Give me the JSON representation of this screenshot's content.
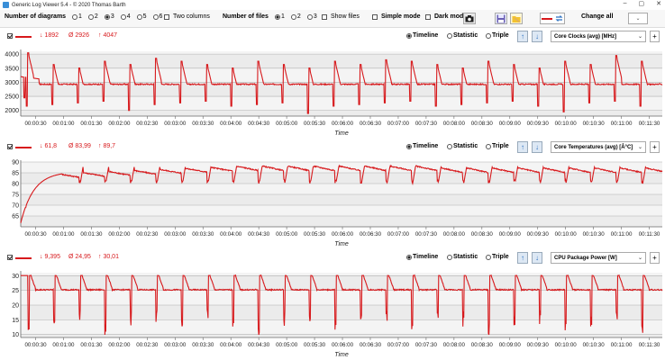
{
  "window": {
    "title": "Generic Log Viewer 5.4 - © 2020 Thomas Barth",
    "minimize": "–",
    "maximize": "▢",
    "close": "✕"
  },
  "toolbar": {
    "num_diagrams_label": "Number of diagrams",
    "diagram_options": [
      "1",
      "2",
      "3",
      "4",
      "5",
      "6"
    ],
    "diagram_selected": "3",
    "two_columns_label": "Two columns",
    "num_files_label": "Number of files",
    "file_options": [
      "1",
      "2",
      "3"
    ],
    "file_selected": "1",
    "show_files_label": "Show files",
    "simple_mode_label": "Simple mode",
    "dark_mode_label": "Dark mod",
    "change_all_label": "Change all",
    "accent_color": "#d7191c"
  },
  "panels": [
    {
      "stats": {
        "min": "↓ 1892",
        "avg": "Ø 2926",
        "max": "↑ 4047"
      },
      "views": [
        "Timeline",
        "Statistic",
        "Triple"
      ],
      "selected_view": "Timeline",
      "sensor": "Core Clocks (avg) [MHz]",
      "add_label": "+",
      "axis_title": "Time"
    },
    {
      "stats": {
        "min": "↓ 61,8",
        "avg": "Ø 83,99",
        "max": "↑ 89,7"
      },
      "views": [
        "Timeline",
        "Statistic",
        "Triple"
      ],
      "selected_view": "Timeline",
      "sensor": "Core Temperatures (avg) [Â°C]",
      "add_label": "+",
      "axis_title": "Time"
    },
    {
      "stats": {
        "min": "↓ 9,395",
        "avg": "Ø 24,95",
        "max": "↑ 30,01"
      },
      "views": [
        "Timeline",
        "Statistic",
        "Triple"
      ],
      "selected_view": "Timeline",
      "sensor": "CPU Package Power [W]",
      "add_label": "+",
      "axis_title": "Time"
    }
  ],
  "chart_data": [
    {
      "type": "line",
      "title": "Core Clocks (avg) [MHz]",
      "xlabel": "Time",
      "ylabel": "",
      "ylim": [
        1800,
        4100
      ],
      "yticks": [
        2000,
        2500,
        3000,
        3500,
        4000
      ],
      "ytick_labels": [
        "2000",
        "2500",
        "3000",
        "3500",
        "4000"
      ],
      "xlim": [
        0,
        690
      ],
      "xtick_labels": [
        "00:00:30",
        "00:01:00",
        "00:01:30",
        "00:02:00",
        "00:02:30",
        "00:03:00",
        "00:03:30",
        "00:04:00",
        "00:04:30",
        "00:05:00",
        "00:05:30",
        "00:06:00",
        "00:06:30",
        "00:07:00",
        "00:07:30",
        "00:08:00",
        "00:08:30",
        "00:09:00",
        "00:09:30",
        "00:10:00",
        "00:10:30",
        "00:11:00",
        "00:11:30"
      ],
      "series": [
        {
          "name": "Core Clocks (avg)",
          "baseline": 2930,
          "start_level": 3200,
          "cycle_period_s": 27.5,
          "first_cycle_s": 8,
          "spike_peak": 3750,
          "dip_low": 2150,
          "extremes": [
            {
              "t": 8,
              "v": 4047
            },
            {
              "t": 4,
              "v": 2450
            },
            {
              "t": 146,
              "v": 3850
            },
            {
              "t": 392,
              "v": 3800
            },
            {
              "t": 638,
              "v": 3950
            },
            {
              "t": 307,
              "v": 1892
            },
            {
              "t": 575,
              "v": 1950
            },
            {
              "t": 120,
              "v": 2000
            }
          ]
        }
      ]
    },
    {
      "type": "line",
      "title": "Core Temperatures (avg) [Â°C]",
      "xlabel": "Time",
      "ylabel": "",
      "ylim": [
        60,
        90
      ],
      "yticks": [
        65,
        70,
        75,
        80,
        85,
        90
      ],
      "ytick_labels": [
        "65",
        "70",
        "75",
        "80",
        "85",
        "90"
      ],
      "xlim": [
        0,
        690
      ],
      "xtick_labels": [
        "00:00:30",
        "00:01:00",
        "00:01:30",
        "00:02:00",
        "00:02:30",
        "00:03:00",
        "00:03:30",
        "00:04:00",
        "00:04:30",
        "00:05:00",
        "00:05:30",
        "00:06:00",
        "00:06:30",
        "00:07:00",
        "00:07:30",
        "00:08:00",
        "00:08:30",
        "00:09:00",
        "00:09:30",
        "00:10:00",
        "00:10:30",
        "00:11:00",
        "00:11:30"
      ],
      "series": [
        {
          "name": "Core Temperatures (avg)",
          "start": 61.8,
          "ramp_end_s": 45,
          "plateau": 85.5,
          "max": 89.7,
          "dip_low": 79,
          "cycle_period_s": 27.5
        }
      ]
    },
    {
      "type": "line",
      "title": "CPU Package Power [W]",
      "xlabel": "Time",
      "ylabel": "",
      "ylim": [
        9,
        31
      ],
      "yticks": [
        10,
        15,
        20,
        25,
        30
      ],
      "ytick_labels": [
        "10",
        "15",
        "20",
        "25",
        "30"
      ],
      "xlim": [
        0,
        690
      ],
      "xtick_labels": [
        "00:00:30",
        "00:01:00",
        "00:01:30",
        "00:02:00",
        "00:02:30",
        "00:03:00",
        "00:03:30",
        "00:04:00",
        "00:04:30",
        "00:05:00",
        "00:05:30",
        "00:06:00",
        "00:06:30",
        "00:07:00",
        "00:07:30",
        "00:08:00",
        "00:08:30",
        "00:09:00",
        "00:09:30",
        "00:10:00",
        "00:10:30",
        "00:11:00",
        "00:11:30"
      ],
      "series": [
        {
          "name": "CPU Package Power",
          "plateau": 30.01,
          "settle": 25.2,
          "dip_low": 9.395,
          "cycle_period_s": 27.5
        }
      ]
    }
  ]
}
